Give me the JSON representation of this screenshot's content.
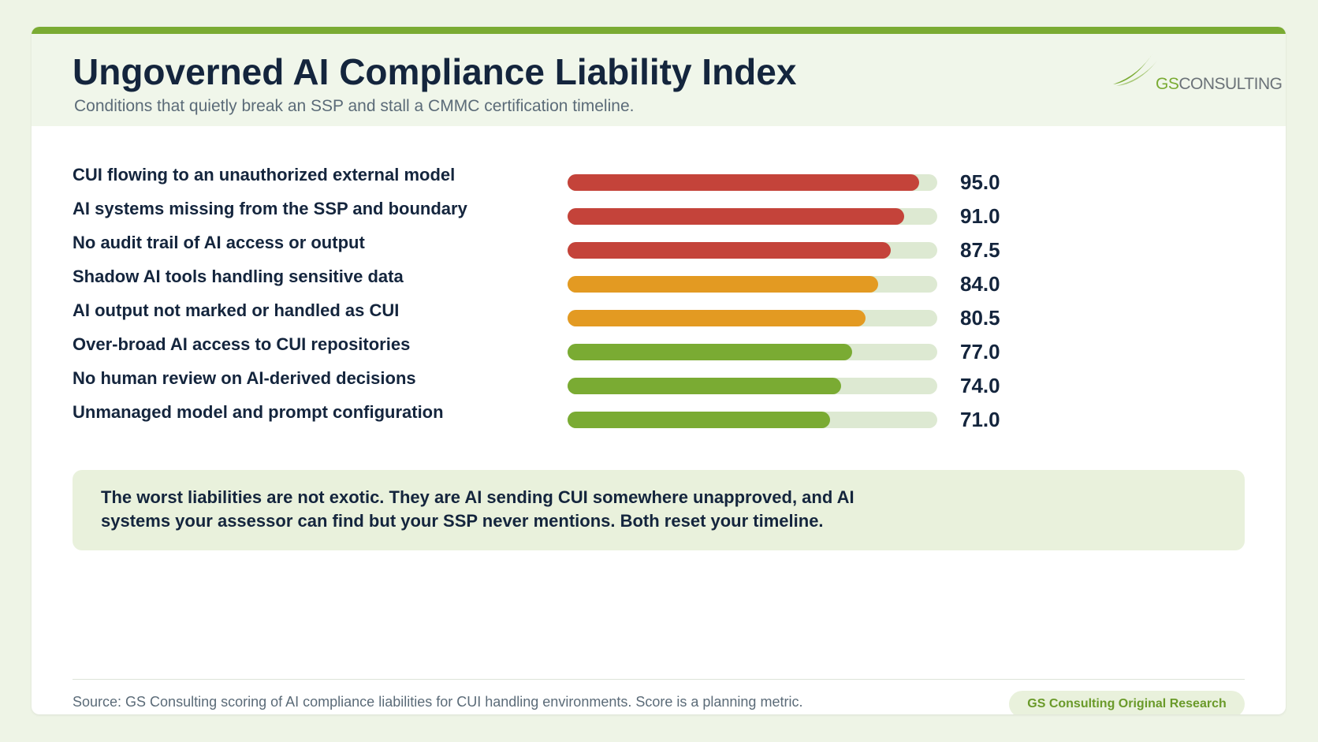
{
  "chart_data": {
    "type": "bar",
    "orientation": "horizontal",
    "title": "Ungoverned AI Compliance Liability Index",
    "subtitle": "Conditions that quietly break an SSP and stall a CMMC certification timeline.",
    "categories": [
      "CUI flowing to an unauthorized external model",
      "AI systems missing from the SSP and boundary",
      "No audit trail of AI access or output",
      "Shadow AI tools handling sensitive data",
      "AI output not marked or handled as CUI",
      "Over-broad AI access to CUI repositories",
      "No human review on AI-derived decisions",
      "Unmanaged model and prompt configuration"
    ],
    "values": [
      95,
      91,
      87.5,
      84,
      80.5,
      77,
      74,
      71
    ],
    "value_labels": [
      "95.0",
      "91.0",
      "87.5",
      "84.0",
      "80.5",
      "77.0",
      "74.0",
      "71.0"
    ],
    "colors": [
      "#c4433a",
      "#c4433a",
      "#c4433a",
      "#e39a22",
      "#e39a22",
      "#7aab33",
      "#7aab33",
      "#7aab33"
    ],
    "track_color": "#dde9d2",
    "xlim": [
      0,
      100
    ]
  },
  "logo": {
    "prefix": "GS",
    "name": "CONSULTING"
  },
  "callout": "The worst liabilities are not exotic. They are AI sending CUI somewhere unapproved, and AI systems your assessor can find but your SSP never mentions. Both reset your timeline.",
  "footer": {
    "source": "Source: GS Consulting scoring of AI compliance liabilities for CUI handling environments. Score is a planning metric.",
    "badge": "GS Consulting Original Research"
  }
}
